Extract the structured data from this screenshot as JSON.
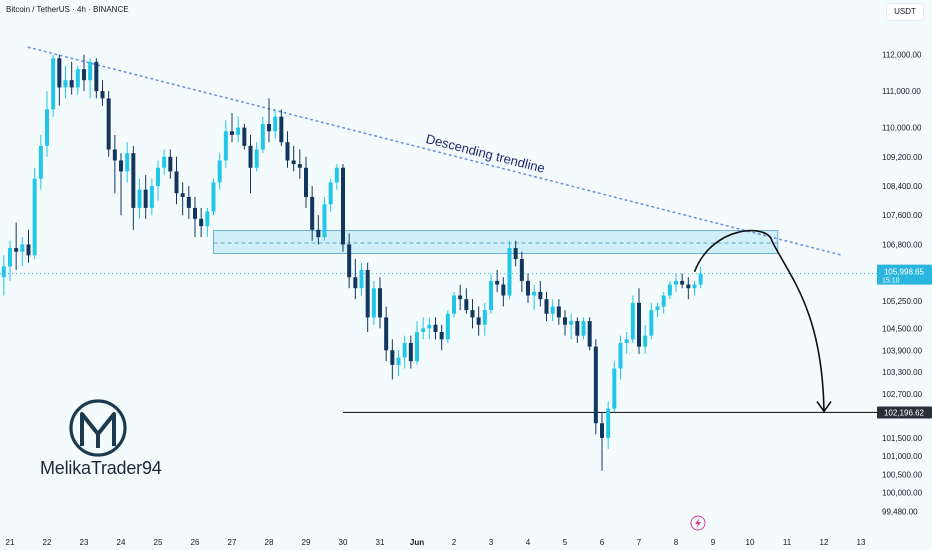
{
  "header": {
    "symbol_line": "Bitcoin / TetherUS · 4h · BINANCE",
    "currency_button": "USDT"
  },
  "brand": {
    "name": "MelikaTrader94"
  },
  "colors": {
    "up": "#22c7e8",
    "down": "#13365e",
    "background": "#f4fbfd",
    "trendline": "#6f8fe6",
    "zone_fill": "#cdeef8",
    "zone_border": "#5fa8c8",
    "support_line": "#222222",
    "price_badge": "#2ab5dc",
    "support_badge": "#2a2e39",
    "logo": "#1b3a4f"
  },
  "chart_data": {
    "type": "candlestick",
    "symbol": "Bitcoin / TetherUS",
    "interval": "4h",
    "exchange": "BINANCE",
    "ylim": [
      99250,
      112400
    ],
    "y_ticks": [
      "112,000.00",
      "111,000.00",
      "110,000.00",
      "109,200.00",
      "108,400.00",
      "107,600.00",
      "106,800.00",
      "105,250.00",
      "104,500.00",
      "103,900.00",
      "103,300.00",
      "102,700.00",
      "101,500.00",
      "101,000.00",
      "100,500.00",
      "100,000.00",
      "99,480.00"
    ],
    "x_ticks": [
      "21",
      "22",
      "23",
      "24",
      "25",
      "26",
      "27",
      "28",
      "29",
      "30",
      "31",
      "Jun",
      "2",
      "3",
      "4",
      "5",
      "6",
      "7",
      "8",
      "9",
      "10",
      "11",
      "12",
      "13"
    ],
    "current_price": {
      "label": "105,998.65",
      "countdown": "15:10",
      "value": 105998.65
    },
    "support_level": {
      "label": "102,196.62",
      "value": 102196.62,
      "x_start": "May 30"
    },
    "resistance_zone": {
      "low": 106550,
      "high": 107180,
      "mid": 106840,
      "x_start": "May 26 12:00",
      "x_end": "Jun 10 18:00"
    },
    "trendline": {
      "label": "Descending trendline",
      "start": {
        "date": "May 21 12:00",
        "price": 112200
      },
      "end": {
        "date": "Jun 12 12:00",
        "price": 106500
      }
    },
    "projection": {
      "start": {
        "date": "Jun 8 12:00",
        "price": 106050
      },
      "peak": {
        "date": "Jun 10 00:00",
        "price": 107000
      },
      "end": {
        "date": "Jun 12 00:00",
        "price": 102196
      }
    },
    "candles": [
      {
        "t": "May 20 16:00",
        "o": 105000,
        "h": 106200,
        "l": 104800,
        "c": 105900
      },
      {
        "t": "May 20 20:00",
        "o": 105900,
        "h": 106500,
        "l": 105400,
        "c": 106200
      },
      {
        "t": "May 21 00:00",
        "o": 106200,
        "h": 106900,
        "l": 105800,
        "c": 106700
      },
      {
        "t": "May 21 04:00",
        "o": 106700,
        "h": 107400,
        "l": 106100,
        "c": 106600
      },
      {
        "t": "May 21 08:00",
        "o": 106600,
        "h": 107000,
        "l": 106200,
        "c": 106800
      },
      {
        "t": "May 21 12:00",
        "o": 106800,
        "h": 107200,
        "l": 106300,
        "c": 106500
      },
      {
        "t": "May 21 16:00",
        "o": 106500,
        "h": 108900,
        "l": 106400,
        "c": 108600
      },
      {
        "t": "May 21 20:00",
        "o": 108600,
        "h": 109800,
        "l": 108300,
        "c": 109500
      },
      {
        "t": "May 22 00:00",
        "o": 109500,
        "h": 111000,
        "l": 109200,
        "c": 110500
      },
      {
        "t": "May 22 04:00",
        "o": 110500,
        "h": 112000,
        "l": 110300,
        "c": 111900
      },
      {
        "t": "May 22 08:00",
        "o": 111900,
        "h": 112000,
        "l": 110600,
        "c": 111100
      },
      {
        "t": "May 22 12:00",
        "o": 111100,
        "h": 111700,
        "l": 110800,
        "c": 111300
      },
      {
        "t": "May 22 16:00",
        "o": 111300,
        "h": 111800,
        "l": 110900,
        "c": 111100
      },
      {
        "t": "May 22 20:00",
        "o": 111100,
        "h": 111700,
        "l": 110900,
        "c": 111600
      },
      {
        "t": "May 23 00:00",
        "o": 111600,
        "h": 112000,
        "l": 111000,
        "c": 111300
      },
      {
        "t": "May 23 04:00",
        "o": 111300,
        "h": 111900,
        "l": 110800,
        "c": 111800
      },
      {
        "t": "May 23 08:00",
        "o": 111800,
        "h": 111900,
        "l": 110800,
        "c": 111000
      },
      {
        "t": "May 23 12:00",
        "o": 111000,
        "h": 111300,
        "l": 110600,
        "c": 110800
      },
      {
        "t": "May 23 16:00",
        "o": 110800,
        "h": 111000,
        "l": 109200,
        "c": 109400
      },
      {
        "t": "May 23 20:00",
        "o": 109400,
        "h": 109800,
        "l": 108200,
        "c": 109100
      },
      {
        "t": "May 24 00:00",
        "o": 109100,
        "h": 109300,
        "l": 107600,
        "c": 108800
      },
      {
        "t": "May 24 04:00",
        "o": 108800,
        "h": 109600,
        "l": 108500,
        "c": 109300
      },
      {
        "t": "May 24 08:00",
        "o": 109300,
        "h": 109500,
        "l": 107200,
        "c": 107800
      },
      {
        "t": "May 24 12:00",
        "o": 107800,
        "h": 108600,
        "l": 107500,
        "c": 108300
      },
      {
        "t": "May 24 16:00",
        "o": 108300,
        "h": 108700,
        "l": 107500,
        "c": 107800
      },
      {
        "t": "May 24 20:00",
        "o": 107800,
        "h": 108600,
        "l": 107600,
        "c": 108400
      },
      {
        "t": "May 25 00:00",
        "o": 108400,
        "h": 109100,
        "l": 108000,
        "c": 108900
      },
      {
        "t": "May 25 04:00",
        "o": 108900,
        "h": 109400,
        "l": 108700,
        "c": 109200
      },
      {
        "t": "May 25 08:00",
        "o": 109200,
        "h": 109400,
        "l": 108600,
        "c": 108800
      },
      {
        "t": "May 25 12:00",
        "o": 108800,
        "h": 109200,
        "l": 107900,
        "c": 108200
      },
      {
        "t": "May 25 16:00",
        "o": 108200,
        "h": 108500,
        "l": 107600,
        "c": 108100
      },
      {
        "t": "May 25 20:00",
        "o": 108100,
        "h": 108400,
        "l": 107500,
        "c": 107800
      },
      {
        "t": "May 26 00:00",
        "o": 107800,
        "h": 108100,
        "l": 107000,
        "c": 107500
      },
      {
        "t": "May 26 04:00",
        "o": 107500,
        "h": 107800,
        "l": 107000,
        "c": 107300
      },
      {
        "t": "May 26 08:00",
        "o": 107300,
        "h": 107800,
        "l": 107000,
        "c": 107700
      },
      {
        "t": "May 26 12:00",
        "o": 107700,
        "h": 108600,
        "l": 107600,
        "c": 108500
      },
      {
        "t": "May 26 16:00",
        "o": 108500,
        "h": 109300,
        "l": 108300,
        "c": 109100
      },
      {
        "t": "May 26 20:00",
        "o": 109100,
        "h": 110200,
        "l": 108900,
        "c": 109900
      },
      {
        "t": "May 27 00:00",
        "o": 109900,
        "h": 110400,
        "l": 109600,
        "c": 109800
      },
      {
        "t": "May 27 04:00",
        "o": 109800,
        "h": 110300,
        "l": 109600,
        "c": 110000
      },
      {
        "t": "May 27 08:00",
        "o": 110000,
        "h": 110100,
        "l": 109400,
        "c": 109500
      },
      {
        "t": "May 27 12:00",
        "o": 109500,
        "h": 109800,
        "l": 108200,
        "c": 108900
      },
      {
        "t": "May 27 16:00",
        "o": 108900,
        "h": 109600,
        "l": 108800,
        "c": 109400
      },
      {
        "t": "May 27 20:00",
        "o": 109400,
        "h": 110300,
        "l": 109300,
        "c": 110100
      },
      {
        "t": "May 28 00:00",
        "o": 110100,
        "h": 110800,
        "l": 109600,
        "c": 109900
      },
      {
        "t": "May 28 04:00",
        "o": 109900,
        "h": 110500,
        "l": 109700,
        "c": 110300
      },
      {
        "t": "May 28 08:00",
        "o": 110300,
        "h": 110500,
        "l": 109500,
        "c": 109600
      },
      {
        "t": "May 28 12:00",
        "o": 109600,
        "h": 109900,
        "l": 108900,
        "c": 109100
      },
      {
        "t": "May 28 16:00",
        "o": 109100,
        "h": 109500,
        "l": 108800,
        "c": 109000
      },
      {
        "t": "May 28 20:00",
        "o": 109000,
        "h": 109400,
        "l": 108600,
        "c": 108900
      },
      {
        "t": "May 29 00:00",
        "o": 108900,
        "h": 109200,
        "l": 107800,
        "c": 108100
      },
      {
        "t": "May 29 04:00",
        "o": 108100,
        "h": 108400,
        "l": 106900,
        "c": 107200
      },
      {
        "t": "May 29 08:00",
        "o": 107200,
        "h": 107600,
        "l": 106800,
        "c": 107000
      },
      {
        "t": "May 29 12:00",
        "o": 107000,
        "h": 108100,
        "l": 106900,
        "c": 107900
      },
      {
        "t": "May 29 16:00",
        "o": 107900,
        "h": 108600,
        "l": 107700,
        "c": 108500
      },
      {
        "t": "May 29 20:00",
        "o": 108500,
        "h": 109000,
        "l": 108300,
        "c": 108900
      },
      {
        "t": "May 30 00:00",
        "o": 108900,
        "h": 109000,
        "l": 106600,
        "c": 106800
      },
      {
        "t": "May 30 04:00",
        "o": 106800,
        "h": 107100,
        "l": 105600,
        "c": 105900
      },
      {
        "t": "May 30 08:00",
        "o": 105900,
        "h": 106400,
        "l": 105300,
        "c": 105600
      },
      {
        "t": "May 30 12:00",
        "o": 105600,
        "h": 106300,
        "l": 105400,
        "c": 106100
      },
      {
        "t": "May 30 16:00",
        "o": 106100,
        "h": 106300,
        "l": 104400,
        "c": 104800
      },
      {
        "t": "May 30 20:00",
        "o": 104800,
        "h": 105800,
        "l": 104600,
        "c": 105600
      },
      {
        "t": "May 31 00:00",
        "o": 105600,
        "h": 105900,
        "l": 104500,
        "c": 104800
      },
      {
        "t": "May 31 04:00",
        "o": 104800,
        "h": 105100,
        "l": 103600,
        "c": 103900
      },
      {
        "t": "May 31 08:00",
        "o": 103900,
        "h": 104200,
        "l": 103100,
        "c": 103500
      },
      {
        "t": "May 31 12:00",
        "o": 103500,
        "h": 103900,
        "l": 103200,
        "c": 103700
      },
      {
        "t": "May 31 16:00",
        "o": 103700,
        "h": 104300,
        "l": 103400,
        "c": 104100
      },
      {
        "t": "May 31 20:00",
        "o": 104100,
        "h": 104300,
        "l": 103400,
        "c": 103600
      },
      {
        "t": "Jun 1 00:00",
        "o": 103600,
        "h": 104700,
        "l": 103500,
        "c": 104400
      },
      {
        "t": "Jun 1 04:00",
        "o": 104400,
        "h": 104800,
        "l": 104200,
        "c": 104500
      },
      {
        "t": "Jun 1 08:00",
        "o": 104500,
        "h": 104800,
        "l": 104200,
        "c": 104600
      },
      {
        "t": "Jun 1 12:00",
        "o": 104600,
        "h": 104800,
        "l": 104200,
        "c": 104400
      },
      {
        "t": "Jun 1 16:00",
        "o": 104400,
        "h": 104600,
        "l": 103900,
        "c": 104200
      },
      {
        "t": "Jun 1 20:00",
        "o": 104200,
        "h": 105000,
        "l": 104100,
        "c": 104900
      },
      {
        "t": "Jun 2 00:00",
        "o": 104900,
        "h": 105500,
        "l": 104800,
        "c": 105400
      },
      {
        "t": "Jun 2 04:00",
        "o": 105400,
        "h": 105700,
        "l": 105000,
        "c": 105300
      },
      {
        "t": "Jun 2 08:00",
        "o": 105300,
        "h": 105600,
        "l": 104900,
        "c": 105000
      },
      {
        "t": "Jun 2 12:00",
        "o": 105000,
        "h": 105300,
        "l": 104500,
        "c": 104800
      },
      {
        "t": "Jun 2 16:00",
        "o": 104800,
        "h": 105100,
        "l": 104300,
        "c": 104600
      },
      {
        "t": "Jun 2 20:00",
        "o": 104600,
        "h": 105200,
        "l": 104300,
        "c": 105000
      },
      {
        "t": "Jun 3 00:00",
        "o": 105000,
        "h": 106000,
        "l": 104900,
        "c": 105800
      },
      {
        "t": "Jun 3 04:00",
        "o": 105800,
        "h": 106100,
        "l": 105500,
        "c": 105700
      },
      {
        "t": "Jun 3 08:00",
        "o": 105700,
        "h": 105900,
        "l": 105100,
        "c": 105400
      },
      {
        "t": "Jun 3 12:00",
        "o": 105400,
        "h": 106900,
        "l": 105300,
        "c": 106700
      },
      {
        "t": "Jun 3 16:00",
        "o": 106700,
        "h": 106900,
        "l": 106200,
        "c": 106400
      },
      {
        "t": "Jun 3 20:00",
        "o": 106400,
        "h": 106600,
        "l": 105500,
        "c": 105800
      },
      {
        "t": "Jun 4 00:00",
        "o": 105800,
        "h": 106000,
        "l": 105200,
        "c": 105400
      },
      {
        "t": "Jun 4 04:00",
        "o": 105400,
        "h": 105700,
        "l": 105000,
        "c": 105500
      },
      {
        "t": "Jun 4 08:00",
        "o": 105500,
        "h": 105800,
        "l": 105100,
        "c": 105300
      },
      {
        "t": "Jun 4 12:00",
        "o": 105300,
        "h": 105500,
        "l": 104700,
        "c": 104900
      },
      {
        "t": "Jun 4 16:00",
        "o": 104900,
        "h": 105300,
        "l": 104700,
        "c": 105100
      },
      {
        "t": "Jun 4 20:00",
        "o": 105100,
        "h": 105300,
        "l": 104600,
        "c": 104800
      },
      {
        "t": "Jun 5 00:00",
        "o": 104800,
        "h": 105000,
        "l": 104300,
        "c": 104600
      },
      {
        "t": "Jun 5 04:00",
        "o": 104600,
        "h": 104900,
        "l": 104200,
        "c": 104700
      },
      {
        "t": "Jun 5 08:00",
        "o": 104700,
        "h": 104800,
        "l": 104100,
        "c": 104300
      },
      {
        "t": "Jun 5 12:00",
        "o": 104300,
        "h": 104800,
        "l": 104200,
        "c": 104700
      },
      {
        "t": "Jun 5 16:00",
        "o": 104700,
        "h": 104800,
        "l": 103900,
        "c": 104000
      },
      {
        "t": "Jun 5 20:00",
        "o": 104000,
        "h": 104200,
        "l": 101600,
        "c": 101900
      },
      {
        "t": "Jun 6 00:00",
        "o": 101900,
        "h": 102200,
        "l": 100600,
        "c": 101500
      },
      {
        "t": "Jun 6 04:00",
        "o": 101500,
        "h": 102500,
        "l": 101200,
        "c": 102300
      },
      {
        "t": "Jun 6 08:00",
        "o": 102300,
        "h": 103600,
        "l": 102200,
        "c": 103400
      },
      {
        "t": "Jun 6 12:00",
        "o": 103400,
        "h": 104300,
        "l": 103100,
        "c": 104100
      },
      {
        "t": "Jun 6 16:00",
        "o": 104100,
        "h": 104400,
        "l": 103800,
        "c": 104200
      },
      {
        "t": "Jun 6 20:00",
        "o": 104200,
        "h": 105400,
        "l": 104100,
        "c": 105200
      },
      {
        "t": "Jun 7 00:00",
        "o": 105200,
        "h": 105600,
        "l": 103800,
        "c": 104000
      },
      {
        "t": "Jun 7 04:00",
        "o": 104000,
        "h": 104600,
        "l": 103800,
        "c": 104300
      },
      {
        "t": "Jun 7 08:00",
        "o": 104300,
        "h": 105200,
        "l": 104200,
        "c": 105000
      },
      {
        "t": "Jun 7 12:00",
        "o": 105000,
        "h": 105200,
        "l": 104800,
        "c": 105100
      },
      {
        "t": "Jun 7 16:00",
        "o": 105100,
        "h": 105500,
        "l": 104900,
        "c": 105400
      },
      {
        "t": "Jun 7 20:00",
        "o": 105400,
        "h": 105800,
        "l": 105300,
        "c": 105700
      },
      {
        "t": "Jun 8 00:00",
        "o": 105700,
        "h": 106000,
        "l": 105500,
        "c": 105800
      },
      {
        "t": "Jun 8 04:00",
        "o": 105800,
        "h": 106000,
        "l": 105600,
        "c": 105700
      },
      {
        "t": "Jun 8 08:00",
        "o": 105700,
        "h": 105900,
        "l": 105300,
        "c": 105600
      },
      {
        "t": "Jun 8 12:00",
        "o": 105600,
        "h": 105800,
        "l": 105400,
        "c": 105700
      },
      {
        "t": "Jun 8 16:00",
        "o": 105700,
        "h": 106200,
        "l": 105600,
        "c": 106000
      }
    ]
  }
}
